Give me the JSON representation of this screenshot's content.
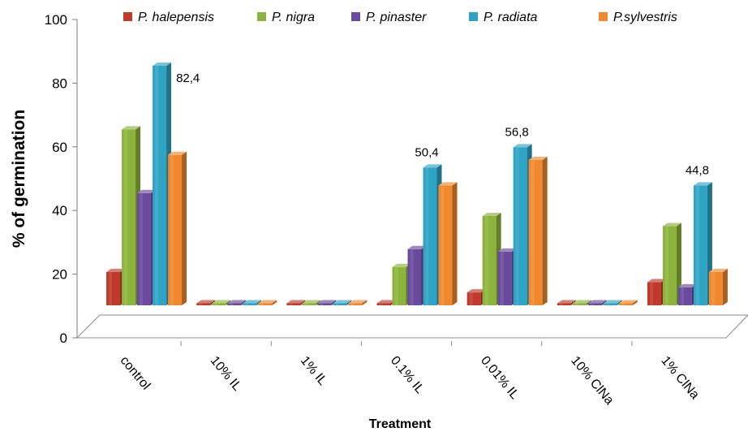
{
  "chart_data": {
    "type": "bar",
    "title": "",
    "xlabel": "Treatment",
    "ylabel": "% of germination",
    "ylim": [
      0,
      100
    ],
    "yticks": [
      "0",
      "20",
      "40",
      "60",
      "80",
      "100"
    ],
    "categories": [
      "control",
      "10% IL",
      "1% IL",
      "0.1% IL",
      "0.01% IL",
      "10% ClNa",
      "1% ClNa"
    ],
    "legend_position": "top",
    "series": [
      {
        "name": "P. halepensis",
        "color": "#c0392b",
        "values": [
          17.6,
          0,
          0,
          0,
          11.2,
          0,
          14.4
        ]
      },
      {
        "name": "P. nigra",
        "color": "#8cb43c",
        "values": [
          62.4,
          0,
          0,
          19.2,
          35.2,
          0,
          32
        ]
      },
      {
        "name": "P. pinaster",
        "color": "#6a4a9c",
        "values": [
          42.4,
          0,
          0,
          24.8,
          24,
          0,
          12.8
        ]
      },
      {
        "name": "P. radiata",
        "color": "#2ea3c4",
        "values": [
          82.4,
          0,
          4.8,
          50.4,
          56.8,
          0,
          44.8
        ]
      },
      {
        "name": "P.sylvestris",
        "color": "#f0892e",
        "values": [
          54.4,
          0,
          0,
          44.8,
          52.8,
          0,
          17.6
        ]
      }
    ],
    "data_labels": [
      {
        "category": "control",
        "series": "P. radiata",
        "text": "82,4"
      },
      {
        "category": "0.1% IL",
        "series": "P. radiata",
        "text": "50,4"
      },
      {
        "category": "0.01% IL",
        "series": "P. radiata",
        "text": "56,8"
      },
      {
        "category": "1% ClNa",
        "series": "P. radiata",
        "text": "44,8"
      }
    ]
  }
}
